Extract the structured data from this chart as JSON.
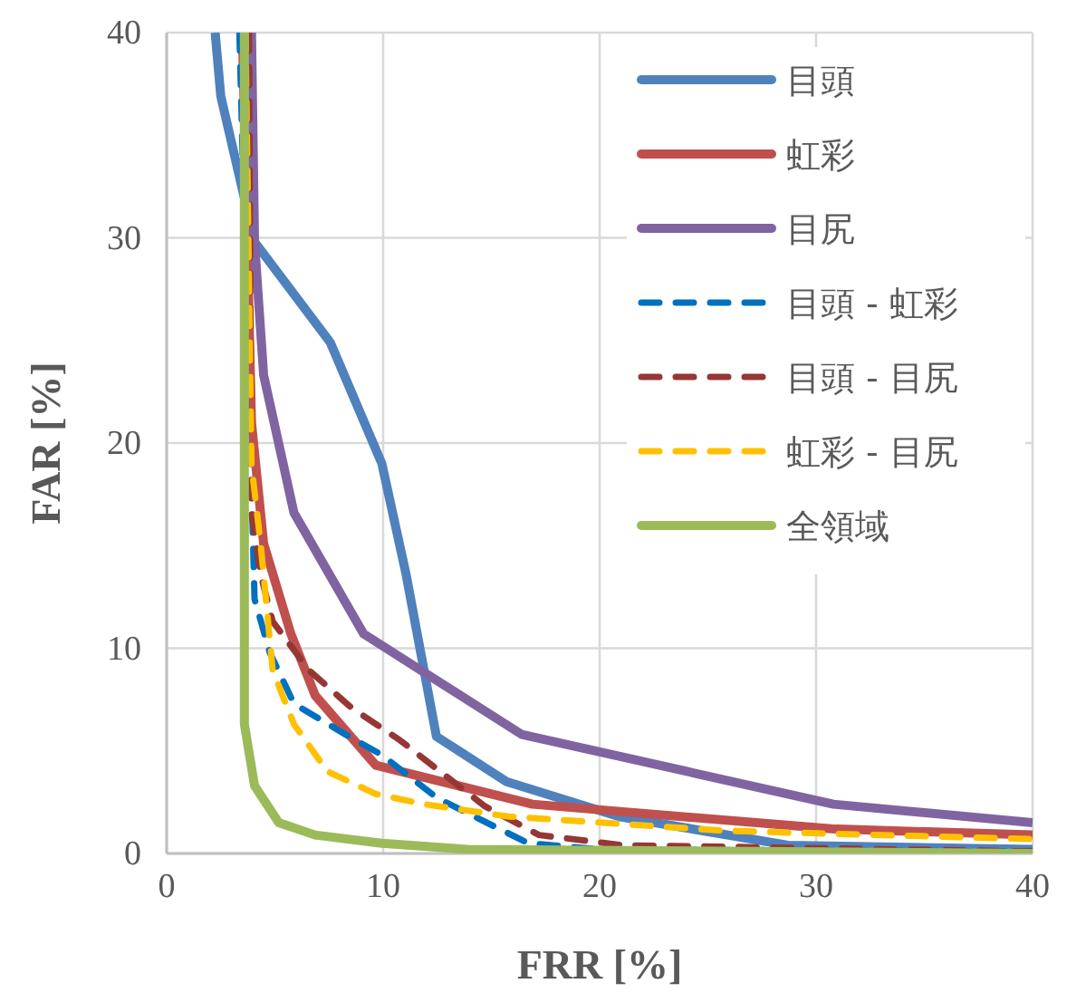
{
  "chart_data": {
    "type": "line",
    "xlabel": "FRR [%]",
    "ylabel": "FAR [%]",
    "xlim": [
      0,
      40
    ],
    "ylim": [
      0,
      40
    ],
    "xticks": [
      0,
      10,
      20,
      30,
      40
    ],
    "yticks": [
      0,
      10,
      20,
      30,
      40
    ],
    "grid": true,
    "legend": "top right",
    "marker": "none",
    "series": [
      {
        "name": "目頭",
        "color": "#4f81bd",
        "line_style": "solid",
        "x": [
          2.24,
          2.5,
          4.06,
          7.56,
          9.94,
          11.06,
          12.46,
          15.7,
          20.9,
          28.7,
          40
        ],
        "values": [
          40,
          36.9,
          29.8,
          24.9,
          19.0,
          13.6,
          5.7,
          3.5,
          1.8,
          0.4,
          0.2
        ]
      },
      {
        "name": "虹彩",
        "color": "#c0504d",
        "line_style": "solid",
        "x": [
          3.5,
          3.92,
          4.48,
          5.74,
          6.86,
          9.66,
          16.9,
          30.7,
          40
        ],
        "values": [
          40,
          21.0,
          15.1,
          10.7,
          7.7,
          4.3,
          2.4,
          1.2,
          0.9
        ]
      },
      {
        "name": "目尻",
        "color": "#8064a2",
        "line_style": "solid",
        "x": [
          3.92,
          4.06,
          4.48,
          5.88,
          9.1,
          16.4,
          30.8,
          40
        ],
        "values": [
          40,
          29.8,
          23.3,
          16.6,
          10.7,
          5.8,
          2.4,
          1.5
        ]
      },
      {
        "name": "目頭 - 虹彩",
        "color": "#0070c0",
        "line_style": "dashed",
        "x": [
          3.36,
          4.06,
          4.76,
          5.88,
          8.26,
          9.94,
          12.5,
          16.7,
          20,
          40
        ],
        "values": [
          40,
          12.4,
          9.8,
          7.3,
          5.8,
          4.8,
          2.7,
          0.5,
          0.2,
          0.1
        ]
      },
      {
        "name": "目頭 - 目尻",
        "color": "#953735",
        "line_style": "dashed",
        "x": [
          3.8,
          3.92,
          4.34,
          4.9,
          6.6,
          8.54,
          10.8,
          14.7,
          17.2,
          21.1,
          40
        ],
        "values": [
          40,
          16.6,
          13.6,
          11.3,
          8.9,
          7.1,
          5.5,
          2.3,
          0.9,
          0.4,
          0.1
        ]
      },
      {
        "name": "虹彩 - 目尻",
        "color": "#ffc000",
        "line_style": "dashed",
        "x": [
          3.64,
          3.92,
          4.34,
          4.9,
          5.88,
          7.42,
          9.66,
          11.9,
          15.8,
          25.9,
          40
        ],
        "values": [
          40,
          18.9,
          15.1,
          8.9,
          6.3,
          4.0,
          2.9,
          2.4,
          1.8,
          1.1,
          0.7
        ]
      },
      {
        "name": "全領域",
        "color": "#9bbb59",
        "line_style": "solid",
        "x": [
          3.59,
          3.59,
          4.06,
          5.18,
          6.86,
          9.94,
          13.9,
          40
        ],
        "values": [
          40,
          6.3,
          3.3,
          1.5,
          0.9,
          0.5,
          0.2,
          0.0
        ]
      }
    ]
  }
}
